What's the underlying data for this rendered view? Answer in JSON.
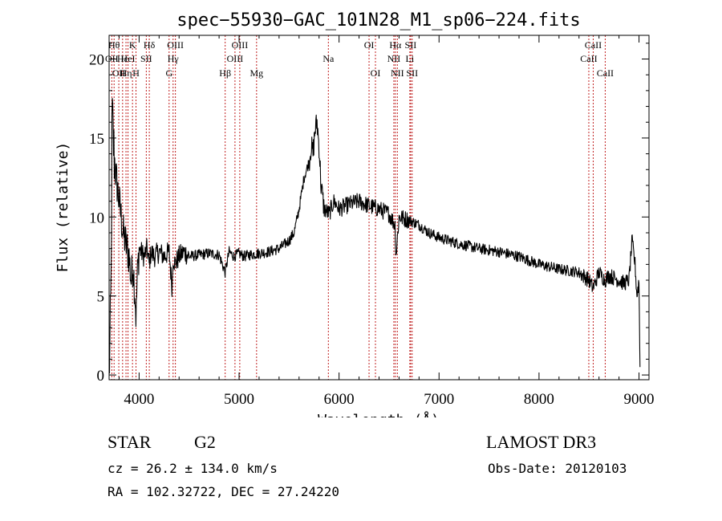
{
  "chart_data": {
    "type": "line",
    "title": "spec−55930−GAC_101N28_M1_sp06−224.fits",
    "xlabel": "Wavelength (Å)",
    "ylabel": "Flux (relative)",
    "xlim": [
      3700,
      9100
    ],
    "ylim": [
      -0.3,
      21.5
    ],
    "xticks": [
      4000,
      5000,
      6000,
      7000,
      8000,
      9000
    ],
    "yticks": [
      0,
      5,
      10,
      15,
      20
    ],
    "series": [
      {
        "name": "spectrum",
        "x": [
          3700,
          3710,
          3720,
          3730,
          3740,
          3760,
          3780,
          3800,
          3820,
          3840,
          3860,
          3880,
          3900,
          3920,
          3940,
          3960,
          3970,
          3980,
          4000,
          4020,
          4050,
          4080,
          4100,
          4120,
          4150,
          4200,
          4250,
          4300,
          4330,
          4340,
          4360,
          4400,
          4450,
          4500,
          4600,
          4700,
          4800,
          4860,
          4900,
          4950,
          5000,
          5050,
          5100,
          5200,
          5300,
          5400,
          5500,
          5550,
          5600,
          5650,
          5700,
          5720,
          5740,
          5760,
          5780,
          5800,
          5820,
          5850,
          5900,
          5950,
          6000,
          6100,
          6200,
          6300,
          6400,
          6500,
          6560,
          6570,
          6600,
          6700,
          6800,
          6900,
          7000,
          7100,
          7200,
          7400,
          7600,
          7800,
          8000,
          8200,
          8400,
          8500,
          8540,
          8600,
          8660,
          8700,
          8800,
          8850,
          8900,
          8930,
          8960,
          8980,
          9000,
          9010
        ],
        "y": [
          0.3,
          2,
          6,
          17,
          15,
          13,
          12,
          11,
          10,
          9,
          8.5,
          8,
          7.5,
          6,
          7,
          5,
          3.5,
          6,
          8,
          7.8,
          7.5,
          8,
          7,
          7.8,
          7.5,
          7.8,
          7.5,
          7.8,
          5.5,
          7.5,
          7,
          7.5,
          7.8,
          7.5,
          7.6,
          7.7,
          7.6,
          6.5,
          7.8,
          7.5,
          7.7,
          7.5,
          7.6,
          7.7,
          7.8,
          8,
          8.5,
          9,
          10.5,
          12.5,
          13.5,
          14.5,
          14,
          15.5,
          16,
          14.5,
          12,
          10.5,
          10.2,
          11,
          10.5,
          10.8,
          11,
          10.7,
          10.5,
          10.2,
          9.5,
          7.5,
          10,
          9.8,
          9.5,
          9,
          8.7,
          8.5,
          8.3,
          8,
          7.8,
          7.5,
          7,
          6.7,
          6.5,
          6,
          5.5,
          6.5,
          6,
          6.3,
          6,
          5.8,
          6,
          8.5,
          7,
          5,
          6,
          0.5
        ]
      }
    ],
    "lines": [
      {
        "wavelength": 3727,
        "label": "OII",
        "row": 1
      },
      {
        "wavelength": 3750,
        "label": "Hθ",
        "row": 0
      },
      {
        "wavelength": 3797,
        "label": "OII",
        "row": 2
      },
      {
        "wavelength": 3835,
        "label": "Hε",
        "row": 1
      },
      {
        "wavelength": 3869,
        "label": "Hη",
        "row": 2
      },
      {
        "wavelength": 3889,
        "label": "HeI",
        "row": 1
      },
      {
        "wavelength": 3934,
        "label": "K",
        "row": 0
      },
      {
        "wavelength": 3969,
        "label": "H",
        "row": 2
      },
      {
        "wavelength": 4072,
        "label": "SII",
        "row": 1
      },
      {
        "wavelength": 4102,
        "label": "Hδ",
        "row": 0
      },
      {
        "wavelength": 4300,
        "label": "G",
        "row": 2
      },
      {
        "wavelength": 4340,
        "label": "Hγ",
        "row": 1
      },
      {
        "wavelength": 4363,
        "label": "OIII",
        "row": 0
      },
      {
        "wavelength": 4861,
        "label": "Hβ",
        "row": 2
      },
      {
        "wavelength": 4959,
        "label": "OIII",
        "row": 1
      },
      {
        "wavelength": 5007,
        "label": "OIII",
        "row": 0
      },
      {
        "wavelength": 5175,
        "label": "Mg",
        "row": 2
      },
      {
        "wavelength": 5893,
        "label": "Na",
        "row": 1
      },
      {
        "wavelength": 6300,
        "label": "OI",
        "row": 0
      },
      {
        "wavelength": 6364,
        "label": "OI",
        "row": 2
      },
      {
        "wavelength": 6548,
        "label": "NII",
        "row": 1
      },
      {
        "wavelength": 6563,
        "label": "Hα",
        "row": 0
      },
      {
        "wavelength": 6583,
        "label": "NII",
        "row": 2
      },
      {
        "wavelength": 6708,
        "label": "Li",
        "row": 1
      },
      {
        "wavelength": 6716,
        "label": "SII",
        "row": 0
      },
      {
        "wavelength": 6731,
        "label": "SII",
        "row": 2
      },
      {
        "wavelength": 8498,
        "label": "CaII",
        "row": 1
      },
      {
        "wavelength": 8542,
        "label": "CaII",
        "row": 0
      },
      {
        "wavelength": 8662,
        "label": "CaII",
        "row": 2
      }
    ]
  },
  "info": {
    "class": "STAR",
    "subclass": "G2",
    "cz": "cz = 26.2 ± 134.0 km/s",
    "coords": "RA = 102.32722, DEC =  27.24220",
    "survey": "LAMOST DR3",
    "obs_date": "Obs-Date: 20120103"
  },
  "colors": {
    "line_marker": "#c02020",
    "spectrum": "#000000",
    "axes": "#000000"
  }
}
